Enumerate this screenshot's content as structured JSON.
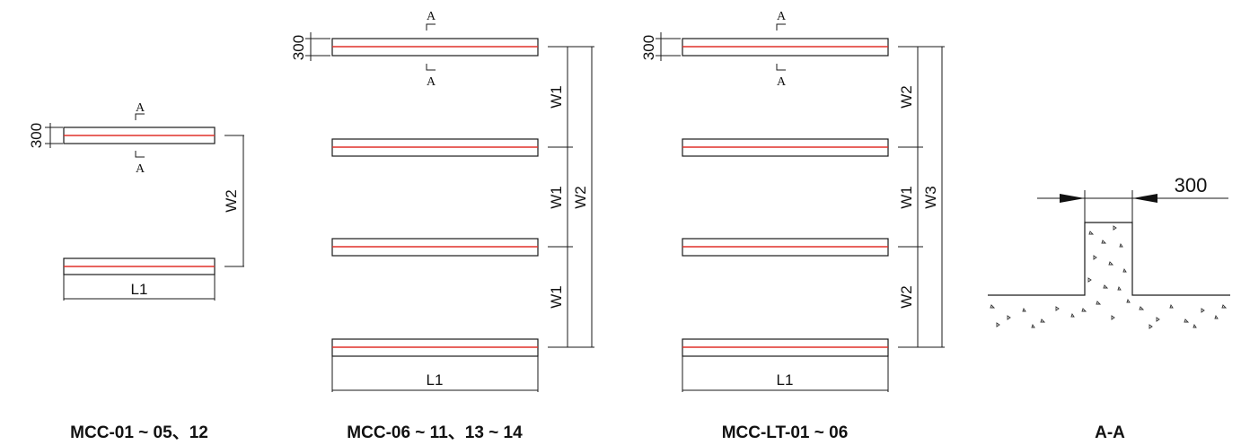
{
  "labels": {
    "thickness": "300",
    "section_mark": "A",
    "length": "L1",
    "w1": "W1",
    "w2": "W2",
    "w3": "W3",
    "section_width": "300"
  },
  "captions": {
    "group1": "MCC-01 ~ 05、12",
    "group2": "MCC-06 ~ 11、13 ~ 14",
    "group3": "MCC-LT-01 ~ 06",
    "section": "A-A"
  },
  "colors": {
    "line": "#1a1a1a",
    "centerline": "#e0302a"
  }
}
